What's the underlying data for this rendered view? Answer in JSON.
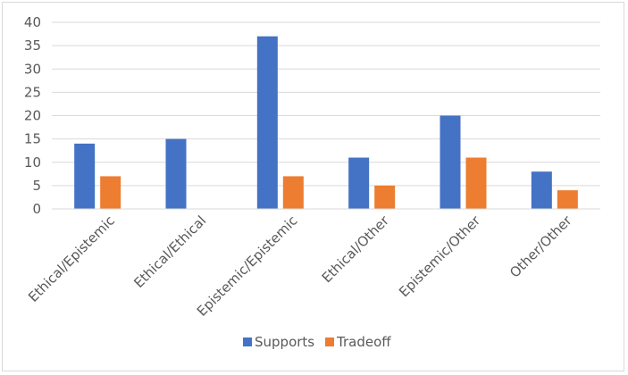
{
  "chart_data": {
    "type": "bar",
    "title": "",
    "xlabel": "",
    "ylabel": "",
    "categories": [
      "Ethical/Epistemic",
      "Ethical/Ethical",
      "Epistemic/Epistemic",
      "Ethical/Other",
      "Epistemic/Other",
      "Other/Other"
    ],
    "series": [
      {
        "name": "Supports",
        "color": "#4472c4",
        "values": [
          14,
          15,
          37,
          11,
          20,
          8
        ]
      },
      {
        "name": "Tradeoff",
        "color": "#ed7d31",
        "values": [
          7,
          0,
          7,
          5,
          11,
          4
        ]
      }
    ],
    "ylim": [
      0,
      40
    ],
    "yticks": [
      0,
      5,
      10,
      15,
      20,
      25,
      30,
      35,
      40
    ],
    "grid": true,
    "legend_position": "bottom"
  }
}
